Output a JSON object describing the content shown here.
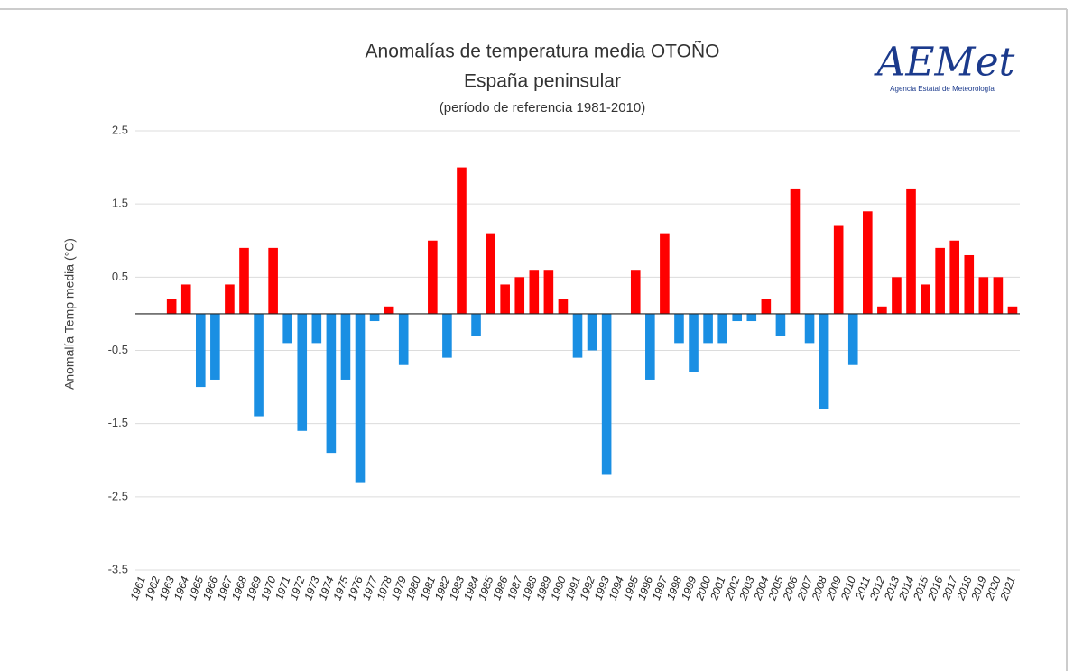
{
  "chart_data": {
    "type": "bar",
    "title": "Anomalías de temperatura media OTOÑO",
    "subtitle": "España peninsular",
    "note": "(período de referencia 1981-2010)",
    "y_label": "Anomalía Temp media (°C)",
    "logo": {
      "text": "AEMet",
      "caption": "Agencia Estatal de Meteorología"
    },
    "categories": [
      "1961",
      "1962",
      "1963",
      "1964",
      "1965",
      "1966",
      "1967",
      "1968",
      "1969",
      "1970",
      "1971",
      "1972",
      "1973",
      "1974",
      "1975",
      "1976",
      "1977",
      "1978",
      "1979",
      "1980",
      "1981",
      "1982",
      "1983",
      "1984",
      "1985",
      "1986",
      "1987",
      "1988",
      "1989",
      "1990",
      "1991",
      "1992",
      "1993",
      "1994",
      "1995",
      "1996",
      "1997",
      "1998",
      "1999",
      "2000",
      "2001",
      "2002",
      "2003",
      "2004",
      "2005",
      "2006",
      "2007",
      "2008",
      "2009",
      "2010",
      "2011",
      "2012",
      "2013",
      "2014",
      "2015",
      "2016",
      "2017",
      "2018",
      "2019",
      "2020",
      "2021"
    ],
    "values": [
      0,
      0,
      0.2,
      0.4,
      -1.0,
      -0.9,
      0.4,
      0.9,
      -1.4,
      0.9,
      -0.4,
      -1.6,
      -0.4,
      -1.9,
      -0.9,
      -2.3,
      -0.1,
      0.1,
      -0.7,
      0,
      1.0,
      -0.6,
      2.0,
      -0.3,
      1.1,
      0.4,
      0.5,
      0.6,
      0.6,
      0.2,
      -0.6,
      -0.5,
      -2.2,
      0,
      0.6,
      -0.9,
      1.1,
      -0.4,
      -0.8,
      -0.4,
      -0.4,
      -0.1,
      -0.1,
      0.2,
      -0.3,
      1.7,
      -0.4,
      -1.3,
      1.2,
      -0.7,
      1.4,
      0.1,
      0.5,
      1.7,
      0.4,
      0.9,
      1.0,
      0.8,
      0.5,
      0.5,
      0.1
    ],
    "positive_color": "#ff0000",
    "negative_color": "#1a8fe3",
    "ylim": [
      -3.5,
      2.5
    ],
    "yticks": [
      2.5,
      1.5,
      0.5,
      -0.5,
      -1.5,
      -2.5,
      -3.5
    ],
    "grid": true
  }
}
